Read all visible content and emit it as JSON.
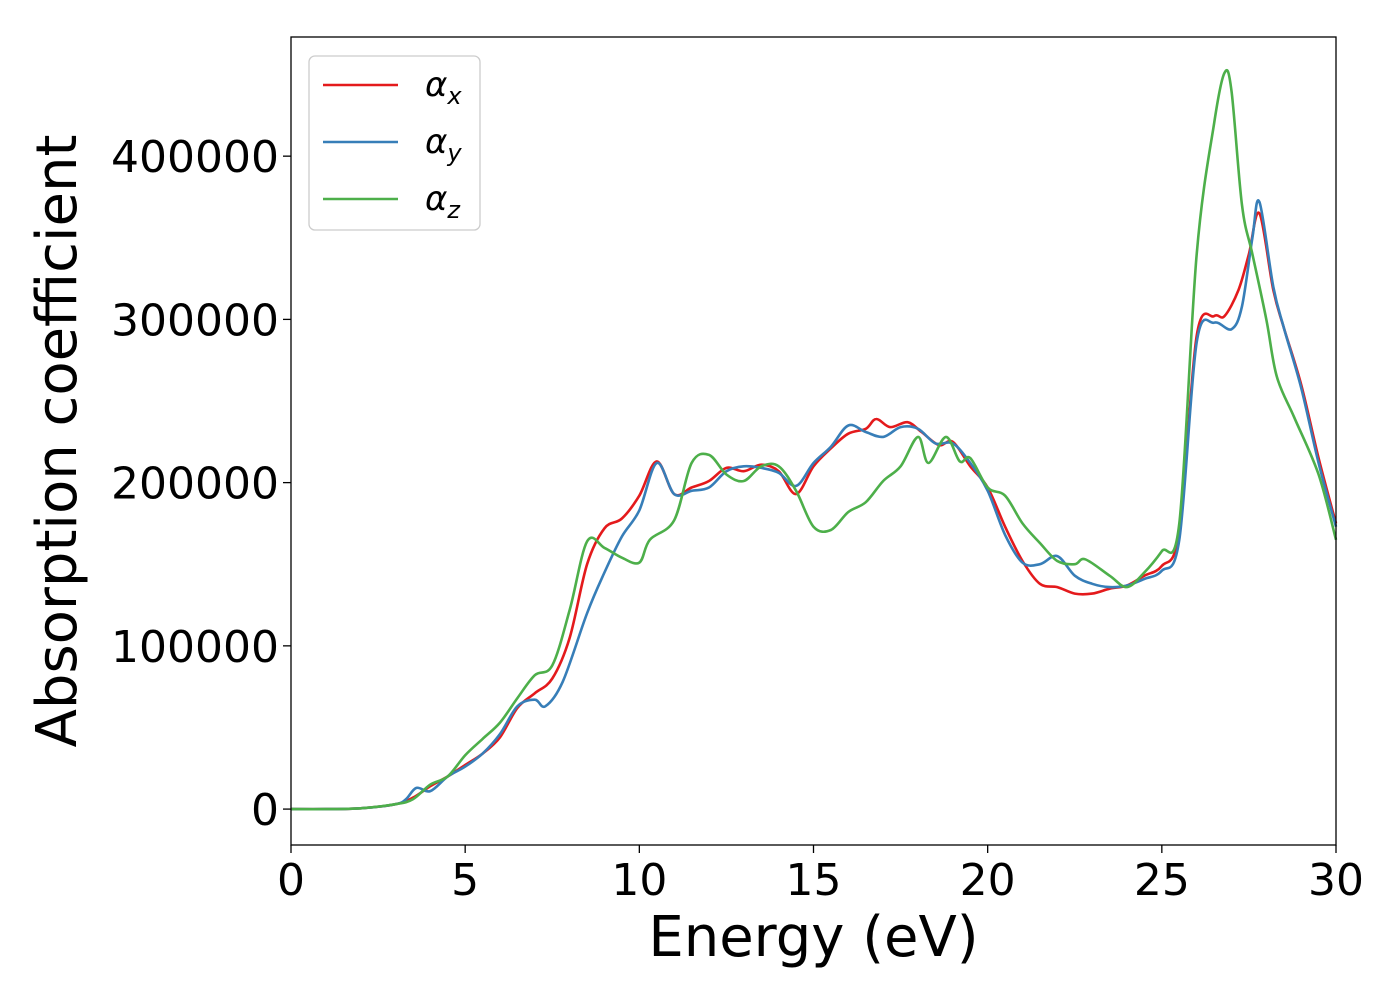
{
  "chart_data": {
    "type": "line",
    "title": "",
    "xlabel": "Energy (eV)",
    "ylabel": "Absorption coefficient",
    "xlim": [
      0,
      30
    ],
    "ylim": [
      -22000,
      473000
    ],
    "xticks": [
      0,
      5,
      10,
      15,
      20,
      25,
      30
    ],
    "yticks": [
      0,
      100000,
      200000,
      300000,
      400000
    ],
    "grid": false,
    "legend_position": "top-left",
    "series": [
      {
        "name": "αx",
        "symbol": "α",
        "subscript": "x",
        "color": "#e41a1c",
        "points": [
          [
            0,
            0
          ],
          [
            1,
            0
          ],
          [
            2,
            500
          ],
          [
            3,
            3000
          ],
          [
            3.5,
            7000
          ],
          [
            4,
            14000
          ],
          [
            4.5,
            20000
          ],
          [
            5,
            27000
          ],
          [
            5.5,
            34000
          ],
          [
            6,
            44000
          ],
          [
            6.5,
            62000
          ],
          [
            7,
            71000
          ],
          [
            7.5,
            80000
          ],
          [
            8,
            105000
          ],
          [
            8.5,
            150000
          ],
          [
            9,
            172000
          ],
          [
            9.5,
            178000
          ],
          [
            10,
            192000
          ],
          [
            10.5,
            213000
          ],
          [
            11,
            193000
          ],
          [
            11.5,
            197000
          ],
          [
            12,
            201000
          ],
          [
            12.5,
            209000
          ],
          [
            13,
            207000
          ],
          [
            13.5,
            211000
          ],
          [
            14,
            207000
          ],
          [
            14.5,
            193000
          ],
          [
            15,
            210000
          ],
          [
            15.5,
            221000
          ],
          [
            16,
            230000
          ],
          [
            16.5,
            233000
          ],
          [
            16.8,
            239000
          ],
          [
            17.2,
            234000
          ],
          [
            17.7,
            237000
          ],
          [
            18.1,
            231000
          ],
          [
            18.6,
            223000
          ],
          [
            19,
            225000
          ],
          [
            19.5,
            210000
          ],
          [
            20,
            197000
          ],
          [
            20.5,
            173000
          ],
          [
            21,
            152000
          ],
          [
            21.5,
            138000
          ],
          [
            22,
            136000
          ],
          [
            22.5,
            132000
          ],
          [
            23,
            132000
          ],
          [
            23.5,
            135000
          ],
          [
            24,
            137000
          ],
          [
            24.5,
            143000
          ],
          [
            25,
            149000
          ],
          [
            25.5,
            170000
          ],
          [
            26,
            290000
          ],
          [
            26.5,
            302000
          ],
          [
            26.8,
            302000
          ],
          [
            27.2,
            318000
          ],
          [
            27.5,
            340000
          ],
          [
            27.8,
            365000
          ],
          [
            28.2,
            318000
          ],
          [
            28.5,
            295000
          ],
          [
            29,
            260000
          ],
          [
            29.5,
            215000
          ],
          [
            30,
            175000
          ]
        ]
      },
      {
        "name": "αy",
        "symbol": "α",
        "subscript": "y",
        "color": "#377eb8",
        "points": [
          [
            0,
            0
          ],
          [
            1,
            0
          ],
          [
            2,
            500
          ],
          [
            3,
            3000
          ],
          [
            3.3,
            6000
          ],
          [
            3.6,
            13000
          ],
          [
            4,
            11000
          ],
          [
            4.5,
            20000
          ],
          [
            5,
            26000
          ],
          [
            5.5,
            34000
          ],
          [
            6,
            46000
          ],
          [
            6.5,
            63000
          ],
          [
            7,
            67000
          ],
          [
            7.3,
            63000
          ],
          [
            7.8,
            78000
          ],
          [
            8.5,
            120000
          ],
          [
            9,
            145000
          ],
          [
            9.5,
            167000
          ],
          [
            10,
            183000
          ],
          [
            10.5,
            212000
          ],
          [
            11,
            193000
          ],
          [
            11.5,
            195000
          ],
          [
            12,
            197000
          ],
          [
            12.5,
            207000
          ],
          [
            13,
            210000
          ],
          [
            13.5,
            209000
          ],
          [
            14,
            206000
          ],
          [
            14.5,
            198000
          ],
          [
            15,
            212000
          ],
          [
            15.5,
            222000
          ],
          [
            16,
            235000
          ],
          [
            16.5,
            231000
          ],
          [
            17,
            228000
          ],
          [
            17.5,
            234000
          ],
          [
            18,
            233000
          ],
          [
            18.5,
            224000
          ],
          [
            19,
            224000
          ],
          [
            19.5,
            212000
          ],
          [
            20,
            195000
          ],
          [
            20.5,
            168000
          ],
          [
            21,
            151000
          ],
          [
            21.5,
            150000
          ],
          [
            22,
            155000
          ],
          [
            22.5,
            143000
          ],
          [
            23,
            138000
          ],
          [
            23.5,
            136000
          ],
          [
            24,
            137000
          ],
          [
            24.5,
            141000
          ],
          [
            25,
            146000
          ],
          [
            25.5,
            165000
          ],
          [
            26,
            286000
          ],
          [
            26.5,
            298000
          ],
          [
            27,
            294000
          ],
          [
            27.3,
            308000
          ],
          [
            27.6,
            350000
          ],
          [
            27.8,
            372000
          ],
          [
            28.2,
            320000
          ],
          [
            28.5,
            295000
          ],
          [
            29,
            258000
          ],
          [
            29.5,
            212000
          ],
          [
            30,
            173000
          ]
        ]
      },
      {
        "name": "αz",
        "symbol": "α",
        "subscript": "z",
        "color": "#4daf4a",
        "points": [
          [
            0,
            0
          ],
          [
            1,
            0
          ],
          [
            2,
            500
          ],
          [
            3,
            3000
          ],
          [
            3.5,
            6000
          ],
          [
            4,
            15000
          ],
          [
            4.5,
            20000
          ],
          [
            5,
            33000
          ],
          [
            5.5,
            43000
          ],
          [
            6,
            53000
          ],
          [
            6.5,
            68000
          ],
          [
            7,
            82000
          ],
          [
            7.5,
            88000
          ],
          [
            8,
            122000
          ],
          [
            8.5,
            164000
          ],
          [
            9,
            160000
          ],
          [
            9.5,
            154000
          ],
          [
            10,
            151000
          ],
          [
            10.3,
            165000
          ],
          [
            11,
            177000
          ],
          [
            11.5,
            212000
          ],
          [
            12,
            217000
          ],
          [
            12.5,
            205000
          ],
          [
            13,
            201000
          ],
          [
            13.5,
            210000
          ],
          [
            14,
            210000
          ],
          [
            14.5,
            195000
          ],
          [
            15,
            173000
          ],
          [
            15.5,
            171000
          ],
          [
            16,
            182000
          ],
          [
            16.5,
            188000
          ],
          [
            17,
            201000
          ],
          [
            17.5,
            210000
          ],
          [
            18,
            228000
          ],
          [
            18.3,
            212000
          ],
          [
            18.8,
            228000
          ],
          [
            19.2,
            213000
          ],
          [
            19.5,
            215000
          ],
          [
            20,
            197000
          ],
          [
            20.5,
            192000
          ],
          [
            21,
            175000
          ],
          [
            21.5,
            163000
          ],
          [
            22,
            152000
          ],
          [
            22.5,
            150000
          ],
          [
            22.8,
            153000
          ],
          [
            23.5,
            143000
          ],
          [
            24,
            136000
          ],
          [
            24.5,
            145000
          ],
          [
            25,
            158000
          ],
          [
            25.5,
            175000
          ],
          [
            26,
            340000
          ],
          [
            26.5,
            420000
          ],
          [
            26.8,
            451000
          ],
          [
            27,
            440000
          ],
          [
            27.3,
            370000
          ],
          [
            27.6,
            340000
          ],
          [
            28,
            300000
          ],
          [
            28.3,
            265000
          ],
          [
            28.8,
            240000
          ],
          [
            29.5,
            205000
          ],
          [
            30,
            165000
          ]
        ]
      }
    ]
  }
}
